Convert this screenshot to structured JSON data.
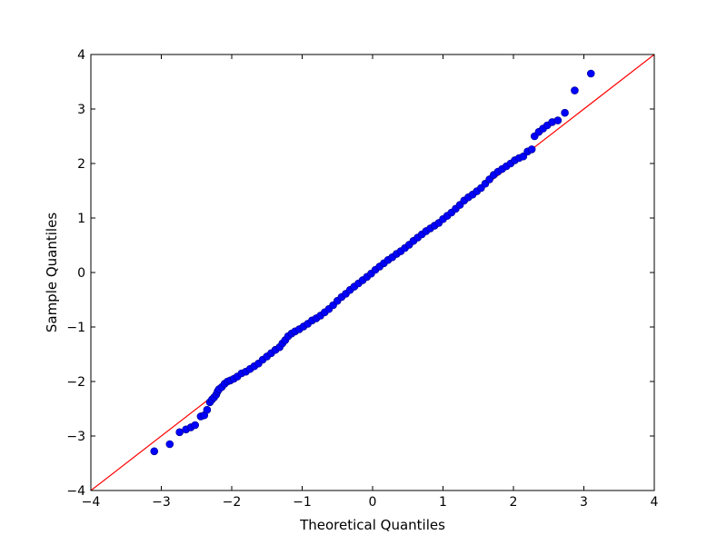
{
  "chart_data": {
    "type": "scatter",
    "title": "",
    "xlabel": "Theoretical Quantiles",
    "ylabel": "Sample Quantiles",
    "xlim": [
      -4,
      4
    ],
    "ylim": [
      -4,
      4
    ],
    "grid": false,
    "legend": "none",
    "x_ticks": [
      "−4",
      "−3",
      "−2",
      "−1",
      "0",
      "1",
      "2",
      "3",
      "4"
    ],
    "y_ticks": [
      "−4",
      "−3",
      "−2",
      "−1",
      "0",
      "1",
      "2",
      "3",
      "4"
    ],
    "reference_line": {
      "points": [
        [
          -4,
          -4
        ],
        [
          4,
          4
        ]
      ],
      "color": "#ff0000"
    },
    "series": [
      {
        "marker_color": "#0000ff",
        "marker_edge_color": "#000080",
        "points": [
          [
            -3.1,
            -3.28
          ],
          [
            -2.88,
            -3.15
          ],
          [
            -2.74,
            -2.93
          ],
          [
            -2.65,
            -2.88
          ],
          [
            -2.58,
            -2.84
          ],
          [
            -2.52,
            -2.8
          ],
          [
            -2.44,
            -2.64
          ],
          [
            -2.39,
            -2.62
          ],
          [
            -2.35,
            -2.52
          ],
          [
            -2.31,
            -2.38
          ],
          [
            -2.28,
            -2.33
          ],
          [
            -2.25,
            -2.29
          ],
          [
            -2.22,
            -2.24
          ],
          [
            -2.2,
            -2.18
          ],
          [
            -2.18,
            -2.14
          ],
          [
            -2.14,
            -2.1
          ],
          [
            -2.1,
            -2.04
          ],
          [
            -2.06,
            -2.0
          ],
          [
            -2.02,
            -1.98
          ],
          [
            -1.97,
            -1.95
          ],
          [
            -1.92,
            -1.91
          ],
          [
            -1.86,
            -1.85
          ],
          [
            -1.8,
            -1.82
          ],
          [
            -1.74,
            -1.77
          ],
          [
            -1.68,
            -1.72
          ],
          [
            -1.62,
            -1.67
          ],
          [
            -1.56,
            -1.6
          ],
          [
            -1.5,
            -1.54
          ],
          [
            -1.44,
            -1.48
          ],
          [
            -1.38,
            -1.42
          ],
          [
            -1.32,
            -1.37
          ],
          [
            -1.28,
            -1.3
          ],
          [
            -1.24,
            -1.24
          ],
          [
            -1.2,
            -1.17
          ],
          [
            -1.15,
            -1.12
          ],
          [
            -1.1,
            -1.08
          ],
          [
            -1.04,
            -1.04
          ],
          [
            -0.98,
            -0.99
          ],
          [
            -0.92,
            -0.94
          ],
          [
            -0.86,
            -0.88
          ],
          [
            -0.8,
            -0.84
          ],
          [
            -0.74,
            -0.79
          ],
          [
            -0.68,
            -0.73
          ],
          [
            -0.62,
            -0.67
          ],
          [
            -0.56,
            -0.6
          ],
          [
            -0.5,
            -0.52
          ],
          [
            -0.44,
            -0.45
          ],
          [
            -0.38,
            -0.39
          ],
          [
            -0.32,
            -0.32
          ],
          [
            -0.26,
            -0.26
          ],
          [
            -0.2,
            -0.2
          ],
          [
            -0.14,
            -0.14
          ],
          [
            -0.08,
            -0.08
          ],
          [
            -0.02,
            -0.02
          ],
          [
            0.04,
            0.05
          ],
          [
            0.1,
            0.11
          ],
          [
            0.16,
            0.17
          ],
          [
            0.22,
            0.23
          ],
          [
            0.28,
            0.28
          ],
          [
            0.34,
            0.34
          ],
          [
            0.4,
            0.39
          ],
          [
            0.46,
            0.45
          ],
          [
            0.52,
            0.51
          ],
          [
            0.58,
            0.58
          ],
          [
            0.64,
            0.64
          ],
          [
            0.7,
            0.7
          ],
          [
            0.76,
            0.76
          ],
          [
            0.82,
            0.81
          ],
          [
            0.88,
            0.86
          ],
          [
            0.94,
            0.91
          ],
          [
            1.0,
            0.98
          ],
          [
            1.06,
            1.04
          ],
          [
            1.12,
            1.1
          ],
          [
            1.18,
            1.17
          ],
          [
            1.24,
            1.24
          ],
          [
            1.3,
            1.32
          ],
          [
            1.36,
            1.38
          ],
          [
            1.42,
            1.43
          ],
          [
            1.48,
            1.49
          ],
          [
            1.54,
            1.55
          ],
          [
            1.6,
            1.63
          ],
          [
            1.66,
            1.71
          ],
          [
            1.72,
            1.79
          ],
          [
            1.78,
            1.85
          ],
          [
            1.84,
            1.9
          ],
          [
            1.9,
            1.95
          ],
          [
            1.96,
            2.0
          ],
          [
            2.02,
            2.06
          ],
          [
            2.08,
            2.1
          ],
          [
            2.14,
            2.13
          ],
          [
            2.2,
            2.22
          ],
          [
            2.26,
            2.26
          ],
          [
            2.3,
            2.5
          ],
          [
            2.36,
            2.58
          ],
          [
            2.42,
            2.64
          ],
          [
            2.48,
            2.7
          ],
          [
            2.55,
            2.76
          ],
          [
            2.63,
            2.79
          ],
          [
            2.73,
            2.93
          ],
          [
            2.87,
            3.34
          ],
          [
            3.1,
            3.65
          ]
        ]
      }
    ]
  }
}
